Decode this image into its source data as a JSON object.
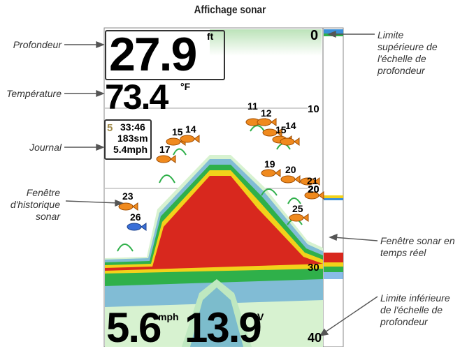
{
  "title": "Affichage sonar",
  "callouts": {
    "depth": "Profondeur",
    "temperature": "Température",
    "log": "Journal",
    "history_line1": "Fenêtre",
    "history_line2": "d'historique",
    "history_line3": "sonar",
    "upper_line1": "Limite",
    "upper_line2": "supérieure de",
    "upper_line3": "l'échelle de",
    "upper_line4": "profondeur",
    "realtime_line1": "Fenêtre sonar en",
    "realtime_line2": "temps réel",
    "lower_line1": "Limite inférieure",
    "lower_line2": "de l'échelle de",
    "lower_line3": "profondeur"
  },
  "readouts": {
    "depth_value": "27.9",
    "depth_unit": "ft",
    "temp_value": "73.4",
    "temp_unit": "°F",
    "log_digit": "5",
    "log_time": "33:46",
    "log_distance": "183sm",
    "log_speed": "5.4mph",
    "speed_value": "5.6",
    "speed_unit": "mph",
    "voltage_value": "13.9",
    "voltage_unit": "V"
  },
  "scale": [
    "0",
    "10",
    "20",
    "30",
    "40"
  ],
  "fish": [
    "11",
    "12",
    "15",
    "14",
    "15",
    "14",
    "17",
    "19",
    "20",
    "21",
    "20",
    "23",
    "26",
    "25"
  ],
  "colors": {
    "fish_orange": "#f08a1e",
    "fish_blue": "#3a6fd8",
    "bottom_red": "#d8281e",
    "bottom_yellow": "#f2d21a",
    "bottom_green": "#2fb04a",
    "bottom_blue": "#3a8fd8"
  }
}
